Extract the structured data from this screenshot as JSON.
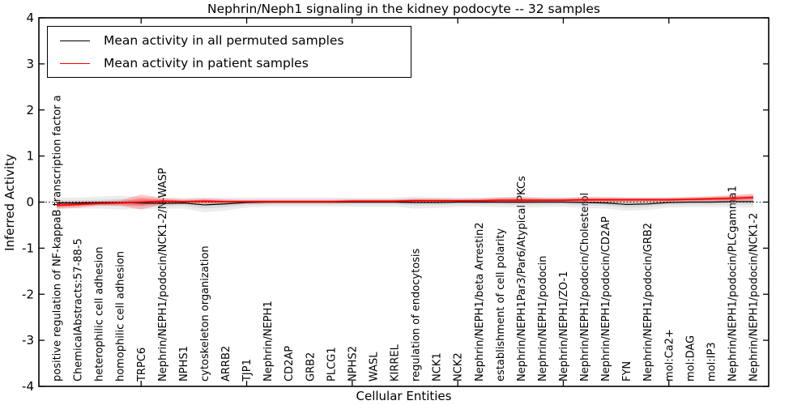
{
  "figure": {
    "title": "Nephrin/Neph1 signaling in the kidney podocyte -- 32 samples",
    "xlabel": "Cellular Entities",
    "ylabel": "Inferred Activity"
  },
  "legend": {
    "entries": [
      {
        "label": "Mean activity in all permuted samples",
        "color": "#000000"
      },
      {
        "label": "Mean activity in patient samples",
        "color": "#ff0000"
      }
    ]
  },
  "chart_data": {
    "type": "line",
    "title": "Nephrin/Neph1 signaling in the kidney podocyte -- 32 samples",
    "xlabel": "Cellular Entities",
    "ylabel": "Inferred Activity",
    "ylim": [
      -4,
      4
    ],
    "yticks": [
      -4,
      -3,
      -2,
      -1,
      0,
      1,
      2,
      3,
      4
    ],
    "ytick_labels": [
      "-4",
      "-3",
      "-2",
      "-1",
      "0",
      "1",
      "2",
      "3",
      "4"
    ],
    "xtick_indices": [
      4,
      9,
      14,
      19,
      24,
      29
    ],
    "grid": false,
    "legend_position": "upper left",
    "zero_line": {
      "y": 0,
      "style": "dotted",
      "color": "#000000"
    },
    "categories": [
      "positive regulation of NF-kappaB transcription factor a",
      "ChemicalAbstracts:57-88-5",
      "heterophilic cell adhesion",
      "homophilic cell adhesion",
      "TRPC6",
      "Nephrin/NEPH1/podocin/NCK1-2/N-WASP",
      "NPHS1",
      "cytoskeleton organization",
      "ARRB2",
      "TJP1",
      "Nephrin/NEPH1",
      "CD2AP",
      "GRB2",
      "PLCG1",
      "NPHS2",
      "WASL",
      "KIRREL",
      "regulation of endocytosis",
      "NCK1",
      "NCK2",
      "Nephrin/NEPH1/beta Arrestin2",
      "establishment of cell polarity",
      "Nephrin/NEPH1Par3/Par6/Atypical PKCs",
      "Nephrin/NEPH1/podocin",
      "Nephrin/NEPH1/ZO-1",
      "Nephrin/NEPH1/podocin/Cholesterol",
      "Nephrin/NEPH1/podocin/CD2AP",
      "FYN",
      "Nephrin/NEPH1/podocin/GRB2",
      "mol:Ca2+",
      "mol:DAG",
      "mol:IP3",
      "Nephrin/NEPH1/podocin/PLCgamma1",
      "Nephrin/NEPH1/podocin/NCK1-2"
    ],
    "series": [
      {
        "name": "Mean activity in all permuted samples",
        "color": "#000000",
        "band_color": "#aaaaaa",
        "values": [
          -0.02,
          -0.02,
          -0.01,
          -0.01,
          -0.02,
          -0.03,
          -0.02,
          -0.06,
          -0.04,
          -0.01,
          0.0,
          0.0,
          0.0,
          0.0,
          0.0,
          0.0,
          0.0,
          -0.01,
          -0.01,
          0.0,
          0.0,
          0.0,
          0.0,
          0.0,
          0.0,
          -0.01,
          -0.02,
          -0.05,
          -0.04,
          -0.01,
          0.0,
          0.0,
          0.01,
          0.01
        ],
        "band_halfwidth": [
          0.12,
          0.12,
          0.13,
          0.15,
          0.13,
          0.12,
          0.12,
          0.16,
          0.14,
          0.11,
          0.1,
          0.1,
          0.1,
          0.1,
          0.1,
          0.1,
          0.1,
          0.13,
          0.12,
          0.1,
          0.1,
          0.11,
          0.12,
          0.11,
          0.1,
          0.12,
          0.12,
          0.14,
          0.13,
          0.11,
          0.11,
          0.11,
          0.12,
          0.13
        ]
      },
      {
        "name": "Mean activity in patient samples",
        "color": "#ff0000",
        "band_color": "#ff0000",
        "values": [
          -0.07,
          -0.05,
          -0.03,
          -0.02,
          0.0,
          0.02,
          0.01,
          0.02,
          0.01,
          0.01,
          0.01,
          0.01,
          0.01,
          0.01,
          0.02,
          0.02,
          0.02,
          0.03,
          0.03,
          0.03,
          0.03,
          0.04,
          0.04,
          0.04,
          0.04,
          0.05,
          0.05,
          0.05,
          0.05,
          0.05,
          0.06,
          0.07,
          0.08,
          0.1
        ],
        "band_halfwidth": [
          0.08,
          0.07,
          0.05,
          0.06,
          0.16,
          0.07,
          0.05,
          0.06,
          0.05,
          0.04,
          0.04,
          0.04,
          0.04,
          0.04,
          0.04,
          0.04,
          0.04,
          0.05,
          0.05,
          0.04,
          0.05,
          0.06,
          0.07,
          0.05,
          0.05,
          0.06,
          0.06,
          0.05,
          0.05,
          0.05,
          0.05,
          0.06,
          0.07,
          0.08
        ]
      }
    ]
  }
}
